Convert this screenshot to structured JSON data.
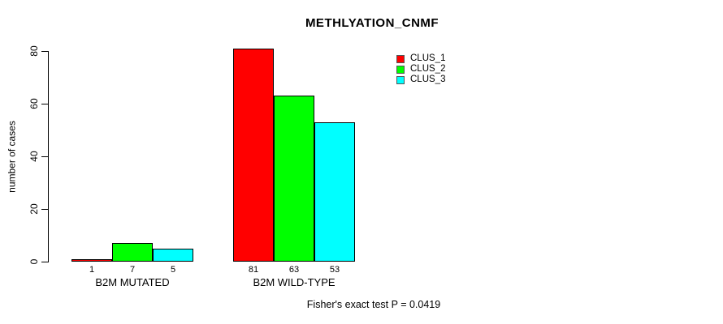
{
  "title": "METHLYATION_CNMF",
  "footer": "Fisher's exact test P = 0.0419",
  "y_axis": {
    "label": "number of cases",
    "ticks": [
      0,
      20,
      40,
      60,
      80
    ]
  },
  "legend": {
    "items": [
      {
        "label": "CLUS_1",
        "color": "#ff0000"
      },
      {
        "label": "CLUS_2",
        "color": "#00ff00"
      },
      {
        "label": "CLUS_3",
        "color": "#00ffff"
      }
    ]
  },
  "chart_data": {
    "type": "bar",
    "title": "METHLYATION_CNMF",
    "categories": [
      "B2M MUTATED",
      "B2M WILD-TYPE"
    ],
    "series": [
      {
        "name": "CLUS_1",
        "color": "#ff0000",
        "values": [
          1,
          81
        ]
      },
      {
        "name": "CLUS_2",
        "color": "#00ff00",
        "values": [
          7,
          63
        ]
      },
      {
        "name": "CLUS_3",
        "color": "#00ffff",
        "values": [
          5,
          53
        ]
      }
    ],
    "bar_value_labels": [
      [
        1,
        7,
        5
      ],
      [
        81,
        63,
        53
      ]
    ],
    "xlabel": "",
    "ylabel": "number of cases",
    "ylim": [
      0,
      80
    ],
    "yticks": [
      0,
      20,
      40,
      60,
      80
    ],
    "grid": false,
    "legend_position": "top-right",
    "annotation": "Fisher's exact test P = 0.0419",
    "bar_border_color": "#000000"
  }
}
